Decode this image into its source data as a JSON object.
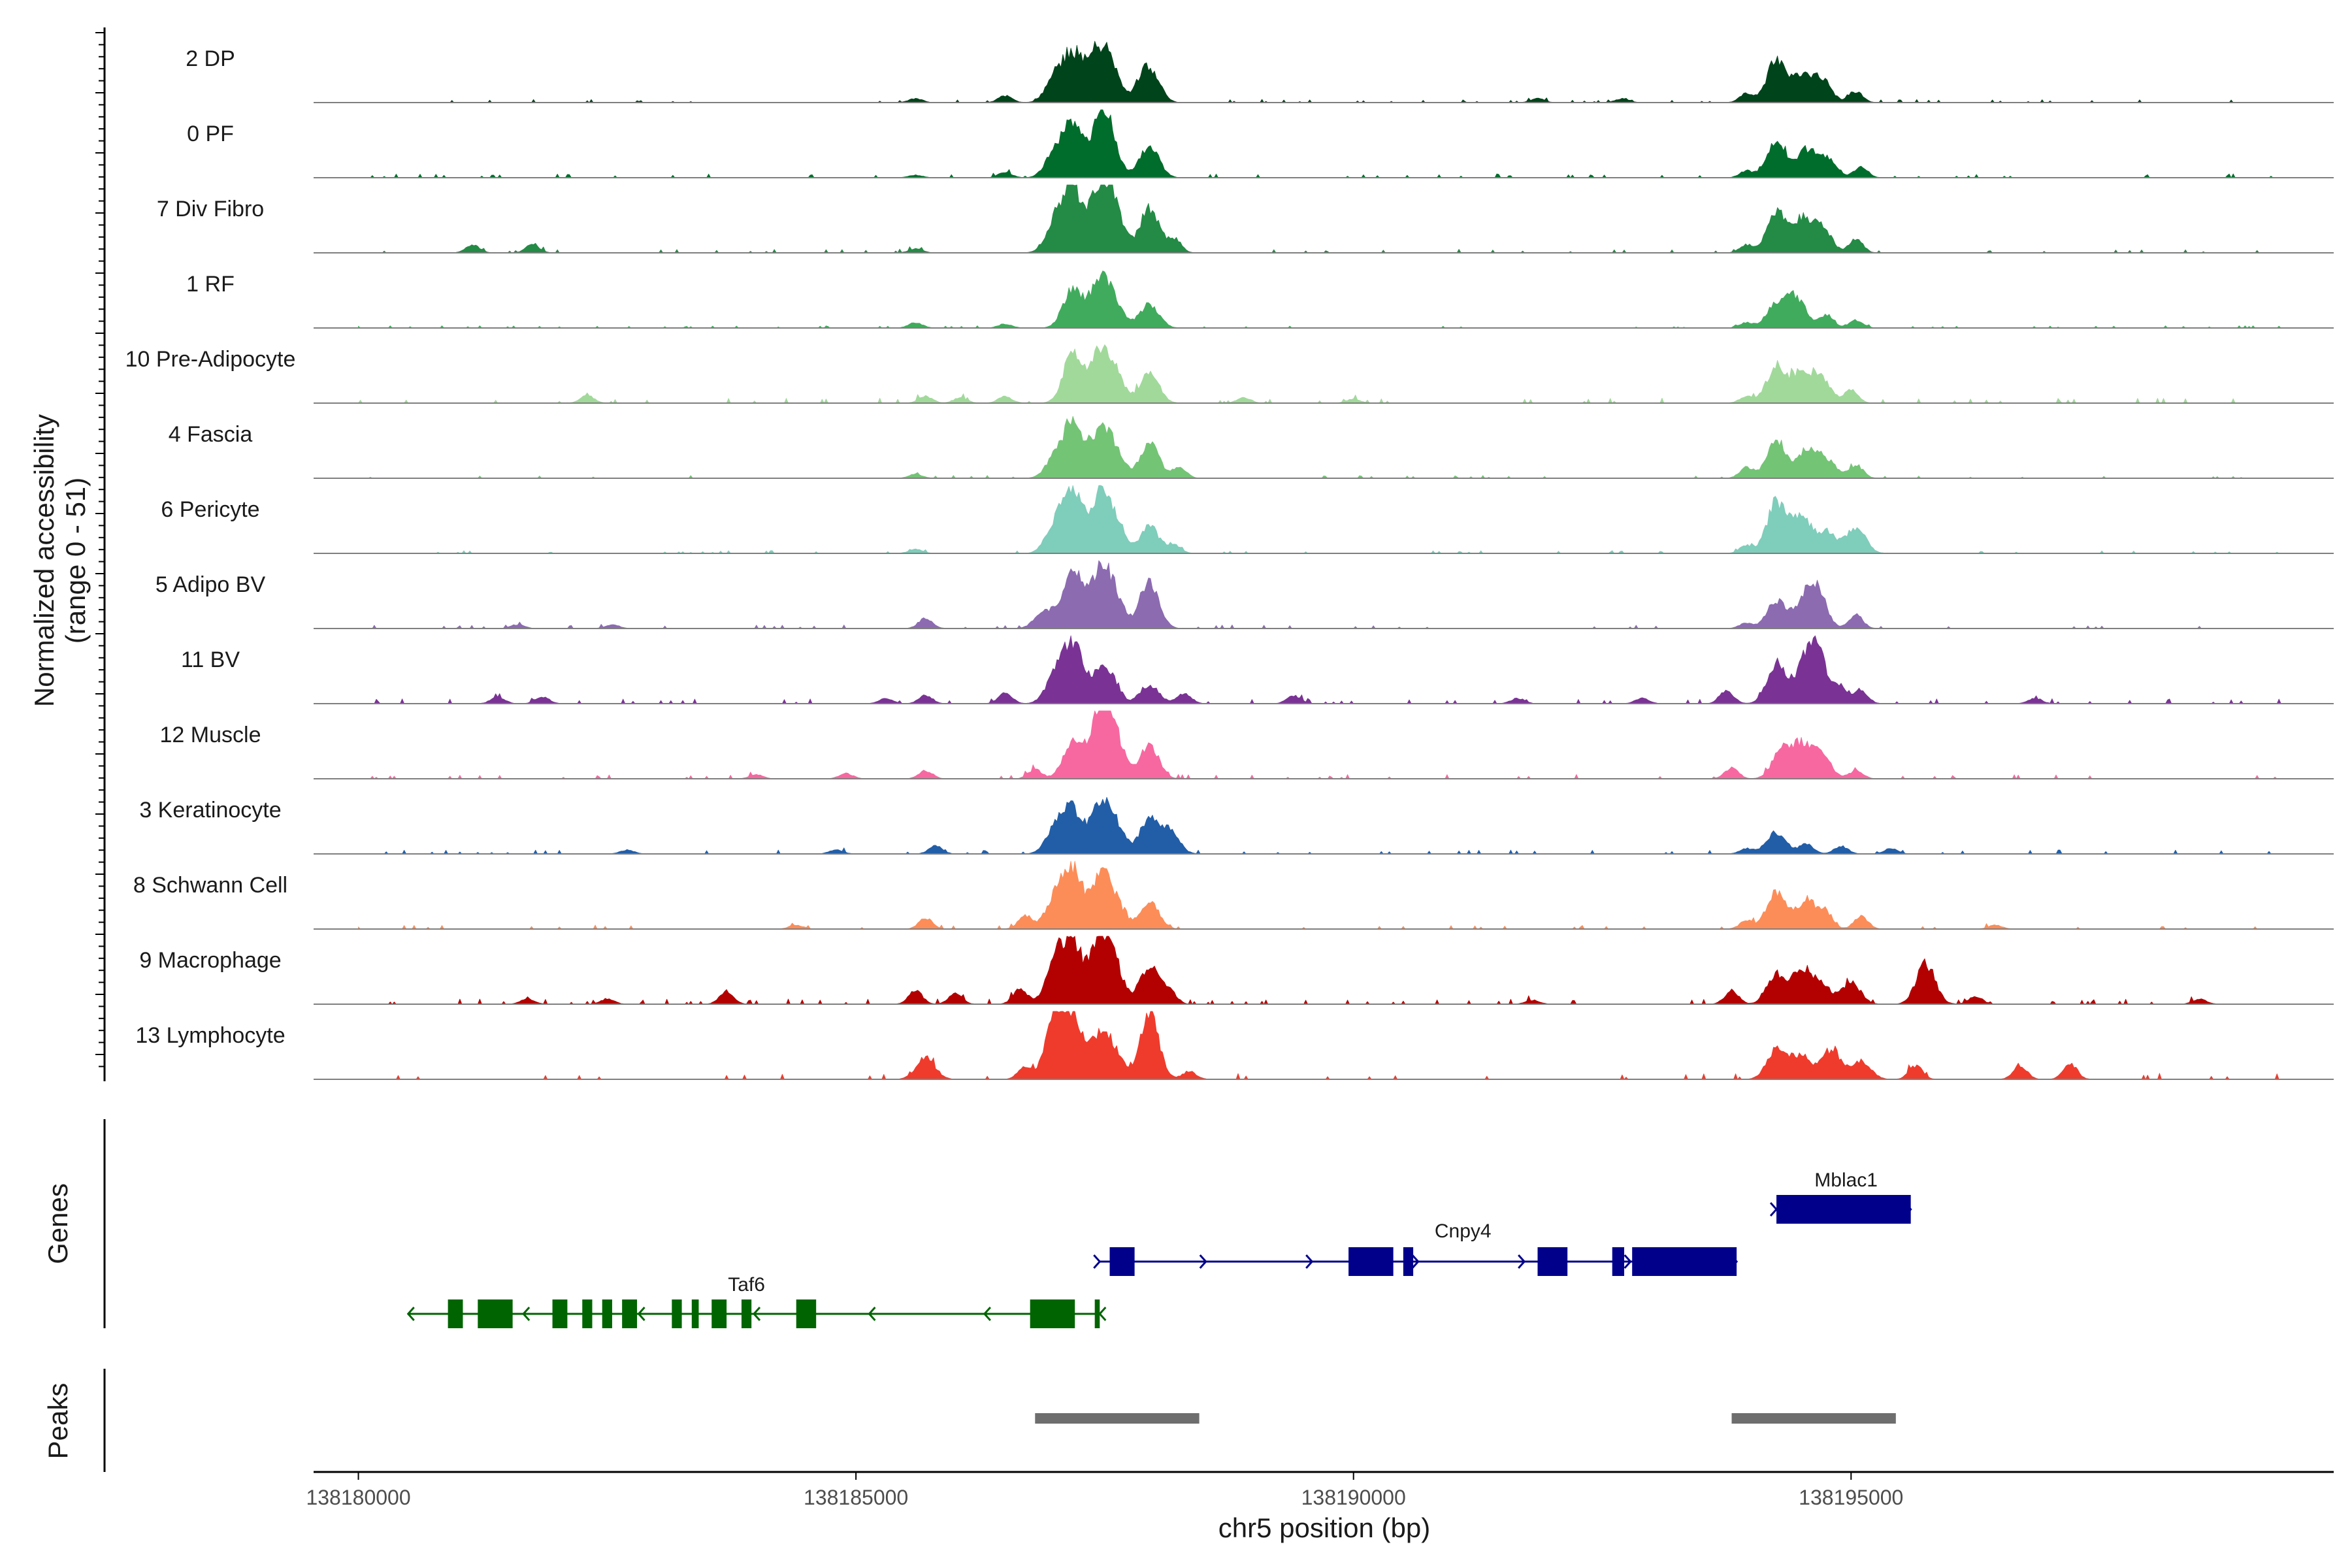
{
  "chart_data": {
    "type": "area",
    "title": "",
    "chromosome": "chr5",
    "xlabel": "chr5 position (bp)",
    "ylabel": "Normalized accessibility",
    "ylabel_sub": "(range 0 - 51)",
    "ylim": [
      0,
      51
    ],
    "xlim": [
      138179550,
      138199850
    ],
    "x_ticks": [
      138180000,
      138185000,
      138190000,
      138195000
    ],
    "x_tick_labels": [
      "138180000",
      "138185000",
      "138190000",
      "138195000"
    ],
    "tracks": [
      {
        "name": "2 DP",
        "color": "#00441b",
        "peaks": [
          [
            138187000,
            18
          ],
          [
            138187180,
            34
          ],
          [
            138187400,
            30
          ],
          [
            138187550,
            28
          ],
          [
            138187920,
            26
          ],
          [
            138186500,
            5
          ],
          [
            138188050,
            5
          ],
          [
            138194250,
            30
          ],
          [
            138194500,
            18
          ],
          [
            138194700,
            18
          ],
          [
            138195050,
            8
          ],
          [
            138193950,
            7
          ],
          [
            138185600,
            3
          ],
          [
            138191850,
            3
          ],
          [
            138192700,
            3
          ]
        ],
        "noise": 0.8
      },
      {
        "name": "0 PF",
        "color": "#006d2c",
        "peaks": [
          [
            138187000,
            18
          ],
          [
            138187180,
            38
          ],
          [
            138187450,
            34
          ],
          [
            138187550,
            24
          ],
          [
            138187950,
            24
          ],
          [
            138186500,
            4
          ],
          [
            138194250,
            26
          ],
          [
            138194550,
            20
          ],
          [
            138194750,
            14
          ],
          [
            138195100,
            8
          ],
          [
            138193950,
            5
          ],
          [
            138185600,
            2
          ]
        ],
        "noise": 1.0
      },
      {
        "name": "7 Div Fibro",
        "color": "#238b45",
        "peaks": [
          [
            138187000,
            22
          ],
          [
            138187180,
            48
          ],
          [
            138187450,
            46
          ],
          [
            138187600,
            30
          ],
          [
            138187950,
            34
          ],
          [
            138188200,
            10
          ],
          [
            138181150,
            6
          ],
          [
            138181750,
            6
          ],
          [
            138194250,
            30
          ],
          [
            138194500,
            24
          ],
          [
            138194700,
            20
          ],
          [
            138195050,
            10
          ],
          [
            138193950,
            6
          ],
          [
            138185600,
            3
          ]
        ],
        "noise": 0.9
      },
      {
        "name": "1 RF",
        "color": "#41ab5d",
        "peaks": [
          [
            138187180,
            30
          ],
          [
            138187450,
            34
          ],
          [
            138187600,
            16
          ],
          [
            138187950,
            18
          ],
          [
            138186500,
            3
          ],
          [
            138185600,
            4
          ],
          [
            138194250,
            18
          ],
          [
            138194450,
            22
          ],
          [
            138194750,
            10
          ],
          [
            138195050,
            6
          ],
          [
            138193950,
            4
          ]
        ],
        "noise": 0.6
      },
      {
        "name": "10 Pre-Adipocyte",
        "color": "#a1d99b",
        "peaks": [
          [
            138187180,
            38
          ],
          [
            138187450,
            34
          ],
          [
            138187600,
            20
          ],
          [
            138187950,
            22
          ],
          [
            138186500,
            5
          ],
          [
            138185700,
            5
          ],
          [
            138186050,
            4
          ],
          [
            138182300,
            6
          ],
          [
            138194250,
            28
          ],
          [
            138194500,
            22
          ],
          [
            138194700,
            18
          ],
          [
            138195000,
            10
          ],
          [
            138193950,
            5
          ],
          [
            138188900,
            4
          ],
          [
            138190000,
            3
          ]
        ],
        "noise": 1.3
      },
      {
        "name": "4 Fascia",
        "color": "#74c476",
        "peaks": [
          [
            138187000,
            14
          ],
          [
            138187180,
            40
          ],
          [
            138187450,
            34
          ],
          [
            138187600,
            18
          ],
          [
            138187950,
            26
          ],
          [
            138188250,
            8
          ],
          [
            138194250,
            28
          ],
          [
            138194550,
            20
          ],
          [
            138194750,
            14
          ],
          [
            138195050,
            10
          ],
          [
            138193950,
            8
          ],
          [
            138185600,
            3
          ]
        ],
        "noise": 0.7
      },
      {
        "name": "6 Pericyte",
        "color": "#7fcdbb",
        "peaks": [
          [
            138187000,
            20
          ],
          [
            138187180,
            48
          ],
          [
            138187450,
            40
          ],
          [
            138187600,
            22
          ],
          [
            138187950,
            20
          ],
          [
            138188200,
            6
          ],
          [
            138194250,
            38
          ],
          [
            138194500,
            28
          ],
          [
            138194750,
            16
          ],
          [
            138195050,
            20
          ],
          [
            138193950,
            6
          ],
          [
            138185600,
            3
          ]
        ],
        "noise": 0.7
      },
      {
        "name": "5 Adipo BV",
        "color": "#8c6bb1",
        "peaks": [
          [
            138186900,
            14
          ],
          [
            138187180,
            46
          ],
          [
            138187450,
            40
          ],
          [
            138187600,
            22
          ],
          [
            138187950,
            34
          ],
          [
            138185700,
            8
          ],
          [
            138181600,
            3
          ],
          [
            138182550,
            3
          ],
          [
            138194250,
            20
          ],
          [
            138194500,
            14
          ],
          [
            138194650,
            30
          ],
          [
            138195050,
            10
          ],
          [
            138193950,
            4
          ]
        ],
        "noise": 0.9
      },
      {
        "name": "11 BV",
        "color": "#7a3395",
        "peaks": [
          [
            138187000,
            20
          ],
          [
            138187180,
            44
          ],
          [
            138187450,
            24
          ],
          [
            138187600,
            12
          ],
          [
            138187950,
            14
          ],
          [
            138186500,
            8
          ],
          [
            138188300,
            8
          ],
          [
            138181400,
            5
          ],
          [
            138181850,
            5
          ],
          [
            138185300,
            4
          ],
          [
            138185700,
            6
          ],
          [
            138194250,
            28
          ],
          [
            138194500,
            18
          ],
          [
            138194650,
            44
          ],
          [
            138194900,
            12
          ],
          [
            138195100,
            10
          ],
          [
            138193750,
            10
          ],
          [
            138189400,
            6
          ],
          [
            138191650,
            4
          ],
          [
            138192900,
            4
          ],
          [
            138196850,
            4
          ]
        ],
        "noise": 1.2
      },
      {
        "name": "12 Muscle",
        "color": "#f768a1",
        "peaks": [
          [
            138187180,
            28
          ],
          [
            138187450,
            50
          ],
          [
            138187600,
            30
          ],
          [
            138187950,
            24
          ],
          [
            138186800,
            7
          ],
          [
            138185700,
            6
          ],
          [
            138184000,
            3
          ],
          [
            138184900,
            4
          ],
          [
            138194300,
            20
          ],
          [
            138194500,
            24
          ],
          [
            138194700,
            18
          ],
          [
            138195050,
            6
          ],
          [
            138193800,
            8
          ]
        ],
        "noise": 1.1
      },
      {
        "name": "3 Keratinocyte",
        "color": "#225ea8",
        "peaks": [
          [
            138187000,
            18
          ],
          [
            138187180,
            32
          ],
          [
            138187450,
            34
          ],
          [
            138187600,
            20
          ],
          [
            138187950,
            26
          ],
          [
            138188150,
            16
          ],
          [
            138185800,
            6
          ],
          [
            138184800,
            3
          ],
          [
            138194250,
            16
          ],
          [
            138194550,
            8
          ],
          [
            138194900,
            6
          ],
          [
            138195400,
            4
          ],
          [
            138193950,
            4
          ],
          [
            138182700,
            3
          ]
        ],
        "noise": 1.0
      },
      {
        "name": "8 Schwann Cell",
        "color": "#fc8d59",
        "peaks": [
          [
            138187000,
            22
          ],
          [
            138187180,
            44
          ],
          [
            138187450,
            34
          ],
          [
            138187600,
            20
          ],
          [
            138187950,
            20
          ],
          [
            138186700,
            10
          ],
          [
            138185700,
            8
          ],
          [
            138194250,
            28
          ],
          [
            138194550,
            22
          ],
          [
            138194750,
            12
          ],
          [
            138195100,
            10
          ],
          [
            138193950,
            6
          ],
          [
            138184400,
            3
          ],
          [
            138196450,
            3
          ]
        ],
        "noise": 1.0
      },
      {
        "name": "9 Macrophage",
        "color": "#b30000",
        "peaks": [
          [
            138187000,
            30
          ],
          [
            138187180,
            44
          ],
          [
            138187450,
            48
          ],
          [
            138187600,
            24
          ],
          [
            138187950,
            28
          ],
          [
            138188150,
            10
          ],
          [
            138186650,
            12
          ],
          [
            138186000,
            8
          ],
          [
            138185600,
            10
          ],
          [
            138183700,
            10
          ],
          [
            138181700,
            4
          ],
          [
            138182500,
            4
          ],
          [
            138194250,
            22
          ],
          [
            138194500,
            24
          ],
          [
            138194700,
            14
          ],
          [
            138195000,
            16
          ],
          [
            138195750,
            30
          ],
          [
            138193800,
            10
          ],
          [
            138196250,
            6
          ],
          [
            138198500,
            4
          ],
          [
            138191800,
            3
          ]
        ],
        "noise": 1.3
      },
      {
        "name": "13 Lymphocyte",
        "color": "#ef3b2c",
        "peaks": [
          [
            138187000,
            44
          ],
          [
            138187180,
            44
          ],
          [
            138187450,
            32
          ],
          [
            138187600,
            16
          ],
          [
            138187950,
            48
          ],
          [
            138186700,
            10
          ],
          [
            138185700,
            16
          ],
          [
            138188350,
            6
          ],
          [
            138194250,
            22
          ],
          [
            138194500,
            18
          ],
          [
            138194800,
            22
          ],
          [
            138195100,
            14
          ],
          [
            138195650,
            10
          ],
          [
            138196700,
            10
          ],
          [
            138197200,
            12
          ]
        ],
        "noise": 1.6
      }
    ],
    "genes": [
      {
        "name": "Taf6",
        "strand": "-",
        "color": "#006400",
        "start": 138180500,
        "end": 138187450,
        "exons": [
          [
            138180900,
            138181050
          ],
          [
            138181200,
            138181550
          ],
          [
            138181950,
            138182100
          ],
          [
            138182250,
            138182350
          ],
          [
            138182450,
            138182550
          ],
          [
            138182650,
            138182800
          ],
          [
            138183150,
            138183250
          ],
          [
            138183350,
            138183420
          ],
          [
            138183550,
            138183700
          ],
          [
            138183850,
            138183950
          ],
          [
            138184400,
            138184600
          ],
          [
            138186750,
            138187200
          ],
          [
            138187400,
            138187450
          ]
        ]
      },
      {
        "name": "Cnpy4",
        "strand": "+",
        "color": "#00008b",
        "start": 138187450,
        "end": 138193850,
        "exons": [
          [
            138187550,
            138187800
          ],
          [
            138189950,
            138190400
          ],
          [
            138190500,
            138190600
          ],
          [
            138191850,
            138192150
          ],
          [
            138192600,
            138192720
          ],
          [
            138192800,
            138193850
          ]
        ]
      },
      {
        "name": "Mblac1",
        "strand": "+",
        "color": "#00008b",
        "start": 138194250,
        "end": 138195600,
        "exons": [
          [
            138194250,
            138195600
          ]
        ]
      }
    ],
    "peak_regions": [
      [
        138186800,
        138188450
      ],
      [
        138193800,
        138195450
      ]
    ],
    "panel_labels": {
      "genes": "Genes",
      "peaks": "Peaks"
    }
  }
}
